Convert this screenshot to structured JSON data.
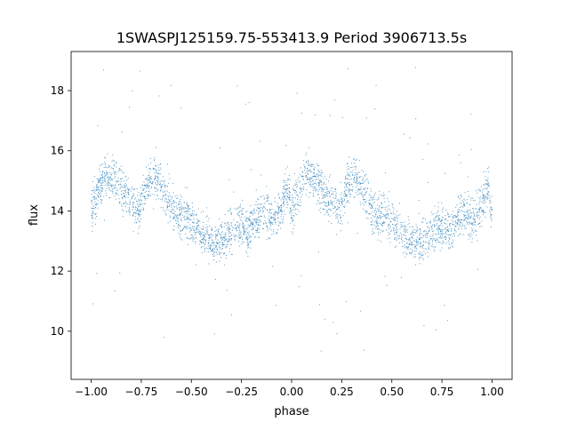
{
  "chart_data": {
    "type": "scatter",
    "title": "1SWASPJ125159.75-553413.9 Period 3906713.5s",
    "xlabel": "phase",
    "ylabel": "flux",
    "xlim": [
      -1.1,
      1.1
    ],
    "ylim": [
      8.4,
      19.3
    ],
    "xticks": [
      -1.0,
      -0.75,
      -0.5,
      -0.25,
      0.0,
      0.25,
      0.5,
      0.75,
      1.0
    ],
    "xtick_labels": [
      "−1.00",
      "−0.75",
      "−0.50",
      "−0.25",
      "0.00",
      "0.25",
      "0.50",
      "0.75",
      "1.00"
    ],
    "yticks": [
      10,
      12,
      14,
      16,
      18
    ],
    "ytick_labels": [
      "10",
      "12",
      "14",
      "16",
      "18"
    ],
    "grid": false,
    "marker_color": "#1f77b4",
    "series": [
      {
        "x": [
          -1.0,
          -0.97,
          -0.93,
          -0.9,
          -0.87,
          -0.84,
          -0.8,
          -0.76,
          -0.72,
          -0.68,
          -0.65,
          -0.61,
          -0.57,
          -0.53,
          -0.49,
          -0.45,
          -0.41,
          -0.37,
          -0.33,
          -0.29,
          -0.25,
          -0.21,
          -0.17,
          -0.13,
          -0.09,
          -0.05,
          -0.02,
          0.0,
          0.03,
          0.07,
          0.1,
          0.13,
          0.16,
          0.2,
          0.24,
          0.28,
          0.32,
          0.35,
          0.39,
          0.43,
          0.47,
          0.51,
          0.55,
          0.59,
          0.63,
          0.67,
          0.71,
          0.75,
          0.79,
          0.83,
          0.87,
          0.91,
          0.95,
          0.98,
          1.0
        ],
        "y": [
          14.0,
          14.6,
          15.2,
          15.1,
          15.0,
          14.6,
          14.3,
          14.0,
          14.9,
          15.2,
          14.8,
          14.2,
          13.8,
          13.9,
          13.6,
          13.3,
          13.0,
          12.9,
          13.1,
          13.4,
          13.6,
          13.3,
          13.8,
          14.0,
          13.6,
          14.2,
          14.8,
          14.0,
          14.6,
          15.2,
          15.1,
          15.0,
          14.6,
          14.3,
          14.0,
          14.9,
          15.2,
          14.8,
          14.2,
          13.8,
          13.9,
          13.6,
          13.3,
          13.0,
          12.9,
          13.1,
          13.4,
          13.6,
          13.3,
          13.8,
          14.0,
          13.6,
          14.2,
          14.8,
          14.0
        ],
        "spread": 0.9,
        "outlier_range": [
          9.2,
          18.8
        ]
      }
    ]
  }
}
